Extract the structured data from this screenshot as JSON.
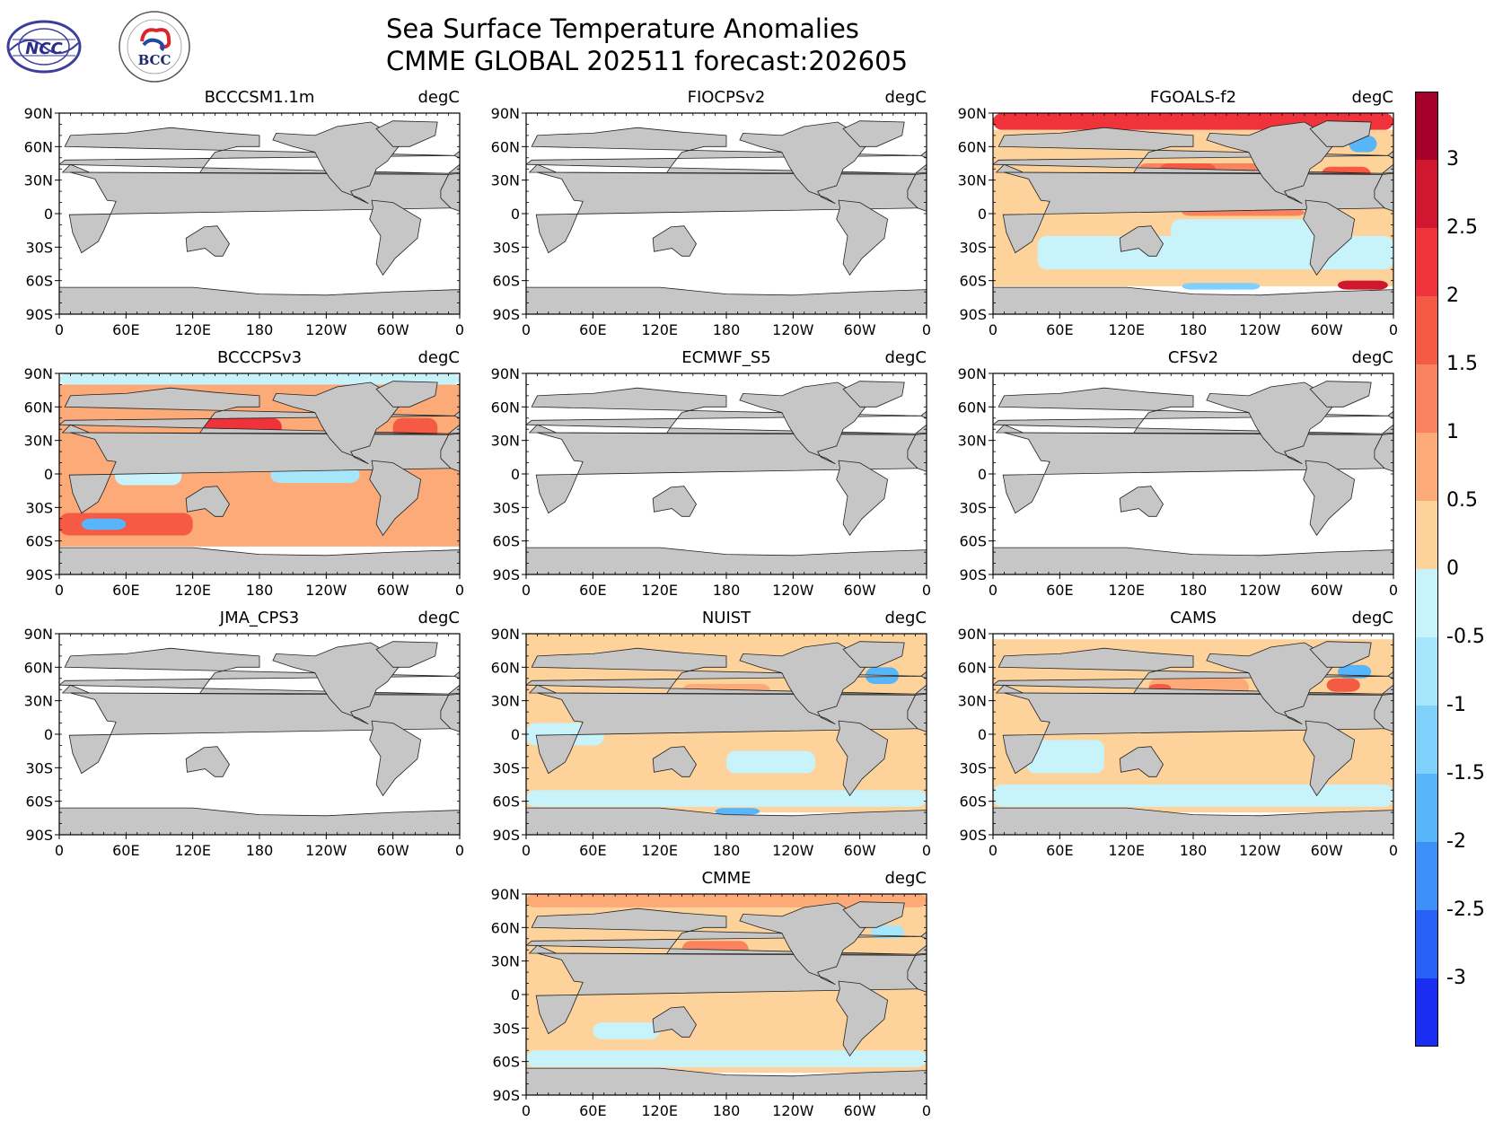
{
  "figure": {
    "title": "Sea Surface Temperature Anomalies",
    "subtitle": "CMME GLOBAL 202511 forecast:202605",
    "unit": "degC"
  },
  "logos": [
    {
      "name": "ncc-logo",
      "lettering": "NCC"
    },
    {
      "name": "bcc-logo",
      "lettering": "BCC"
    }
  ],
  "axes": {
    "lat_labels": [
      "90N",
      "60N",
      "30N",
      "0",
      "30S",
      "60S",
      "90S"
    ],
    "lon_labels": [
      "0",
      "60E",
      "120E",
      "180",
      "120W",
      "60W",
      "0"
    ]
  },
  "panels": [
    {
      "model": "BCCCSM1.1m",
      "unit": "degC",
      "status": "blank"
    },
    {
      "model": "FIOCPSv2",
      "unit": "degC",
      "status": "blank"
    },
    {
      "model": "FGOALS-f2",
      "unit": "degC",
      "status": "strong"
    },
    {
      "model": "BCCCPSv3",
      "unit": "degC",
      "status": "strong"
    },
    {
      "model": "ECMWF_S5",
      "unit": "degC",
      "status": "blank"
    },
    {
      "model": "CFSv2",
      "unit": "degC",
      "status": "blank"
    },
    {
      "model": "JMA_CPS3",
      "unit": "degC",
      "status": "blank"
    },
    {
      "model": "NUIST",
      "unit": "degC",
      "status": "mild"
    },
    {
      "model": "CAMS",
      "unit": "degC",
      "status": "mild"
    },
    {
      "model": "CMME",
      "unit": "degC",
      "status": "mild"
    }
  ],
  "colorbar": {
    "tick_labels": [
      "3",
      "2.5",
      "2",
      "1.5",
      "1",
      "0.5",
      "0",
      "-0.5",
      "-1",
      "-1.5",
      "-2",
      "-2.5",
      "-3"
    ],
    "colors": [
      "#a5002a",
      "#d11630",
      "#f0323a",
      "#f55a45",
      "#f9835e",
      "#fbaa78",
      "#fdd29b",
      "#c8f3fa",
      "#a6e6fb",
      "#7fd0fa",
      "#59b5f9",
      "#3c90f7",
      "#2660f4",
      "#1a2df2"
    ]
  },
  "chart_data": {
    "type": "heatmap",
    "title": "Sea Surface Temperature Anomalies",
    "subtitle": "CMME GLOBAL 202511 forecast:202605",
    "variable": "SST anomaly",
    "unit": "degC",
    "colorbar_levels": [
      -3.5,
      -3,
      -2.5,
      -2,
      -1.5,
      -1,
      -0.5,
      0,
      0.5,
      1,
      1.5,
      2,
      2.5,
      3,
      3.5
    ],
    "x_range_deg_east": [
      0,
      360
    ],
    "y_range_deg": [
      -90,
      90
    ],
    "panels": [
      {
        "model": "BCCCSM1.1m",
        "regions": []
      },
      {
        "model": "FIOCPSv2",
        "regions": []
      },
      {
        "model": "FGOALS-f2",
        "regions": [
          {
            "lon": [
              0,
              360
            ],
            "lat": [
              -65,
              75
            ],
            "value": 0.3
          },
          {
            "lon": [
              0,
              360
            ],
            "lat": [
              75,
              90
            ],
            "value": 2.0
          },
          {
            "lon": [
              130,
              260
            ],
            "lat": [
              20,
              45
            ],
            "value": 1.0
          },
          {
            "lon": [
              150,
              200
            ],
            "lat": [
              35,
              45
            ],
            "value": 1.7
          },
          {
            "lon": [
              170,
              280
            ],
            "lat": [
              -2,
              4
            ],
            "value": 1.2
          },
          {
            "lon": [
              40,
              360
            ],
            "lat": [
              -50,
              -20
            ],
            "value": -0.3
          },
          {
            "lon": [
              160,
              290
            ],
            "lat": [
              -30,
              -5
            ],
            "value": -0.3
          },
          {
            "lon": [
              320,
              345
            ],
            "lat": [
              55,
              70
            ],
            "value": -2.0
          },
          {
            "lon": [
              310,
              355
            ],
            "lat": [
              -68,
              -60
            ],
            "value": 2.8
          },
          {
            "lon": [
              170,
              240
            ],
            "lat": [
              -68,
              -62
            ],
            "value": -1.5
          },
          {
            "lon": [
              295,
              340
            ],
            "lat": [
              25,
              42
            ],
            "value": 1.7
          }
        ]
      },
      {
        "model": "BCCCPSv3",
        "regions": [
          {
            "lon": [
              0,
              360
            ],
            "lat": [
              -65,
              80
            ],
            "value": 0.7
          },
          {
            "lon": [
              130,
              200
            ],
            "lat": [
              30,
              50
            ],
            "value": 2.0
          },
          {
            "lon": [
              190,
              270
            ],
            "lat": [
              -8,
              6
            ],
            "value": -0.8
          },
          {
            "lon": [
              50,
              110
            ],
            "lat": [
              -10,
              20
            ],
            "value": -0.3
          },
          {
            "lon": [
              0,
              120
            ],
            "lat": [
              -55,
              -35
            ],
            "value": 1.5
          },
          {
            "lon": [
              20,
              60
            ],
            "lat": [
              -50,
              -40
            ],
            "value": -2.0
          },
          {
            "lon": [
              300,
              340
            ],
            "lat": [
              30,
              50
            ],
            "value": 1.7
          },
          {
            "lon": [
              0,
              360
            ],
            "lat": [
              80,
              90
            ],
            "value": -0.3
          }
        ]
      },
      {
        "model": "ECMWF_S5",
        "regions": []
      },
      {
        "model": "CFSv2",
        "regions": []
      },
      {
        "model": "JMA_CPS3",
        "regions": []
      },
      {
        "model": "NUIST",
        "regions": [
          {
            "lon": [
              0,
              360
            ],
            "lat": [
              -70,
              90
            ],
            "value": 0.3
          },
          {
            "lon": [
              0,
              360
            ],
            "lat": [
              -65,
              -50
            ],
            "value": -0.3
          },
          {
            "lon": [
              0,
              70
            ],
            "lat": [
              -10,
              10
            ],
            "value": -0.3
          },
          {
            "lon": [
              140,
              220
            ],
            "lat": [
              25,
              45
            ],
            "value": 0.8
          },
          {
            "lon": [
              305,
              335
            ],
            "lat": [
              45,
              60
            ],
            "value": -2.0
          },
          {
            "lon": [
              180,
              260
            ],
            "lat": [
              -35,
              -15
            ],
            "value": -0.3
          },
          {
            "lon": [
              170,
              210
            ],
            "lat": [
              -72,
              -66
            ],
            "value": -2.0
          }
        ]
      },
      {
        "model": "CAMS",
        "regions": [
          {
            "lon": [
              0,
              360
            ],
            "lat": [
              -70,
              85
            ],
            "value": 0.3
          },
          {
            "lon": [
              0,
              360
            ],
            "lat": [
              -65,
              -45
            ],
            "value": -0.3
          },
          {
            "lon": [
              30,
              100
            ],
            "lat": [
              -35,
              -5
            ],
            "value": -0.3
          },
          {
            "lon": [
              140,
              230
            ],
            "lat": [
              25,
              50
            ],
            "value": 0.8
          },
          {
            "lon": [
              300,
              330
            ],
            "lat": [
              38,
              50
            ],
            "value": 1.7
          },
          {
            "lon": [
              310,
              340
            ],
            "lat": [
              50,
              62
            ],
            "value": -2.0
          },
          {
            "lon": [
              140,
              160
            ],
            "lat": [
              38,
              45
            ],
            "value": 1.7
          }
        ]
      },
      {
        "model": "CMME",
        "regions": [
          {
            "lon": [
              0,
              360
            ],
            "lat": [
              -70,
              90
            ],
            "value": 0.3
          },
          {
            "lon": [
              0,
              360
            ],
            "lat": [
              -65,
              -50
            ],
            "value": -0.3
          },
          {
            "lon": [
              140,
              200
            ],
            "lat": [
              30,
              48
            ],
            "value": 1.2
          },
          {
            "lon": [
              310,
              340
            ],
            "lat": [
              50,
              62
            ],
            "value": -0.8
          },
          {
            "lon": [
              0,
              360
            ],
            "lat": [
              78,
              90
            ],
            "value": 0.8
          },
          {
            "lon": [
              60,
              120
            ],
            "lat": [
              -40,
              -25
            ],
            "value": -0.3
          }
        ]
      }
    ]
  }
}
